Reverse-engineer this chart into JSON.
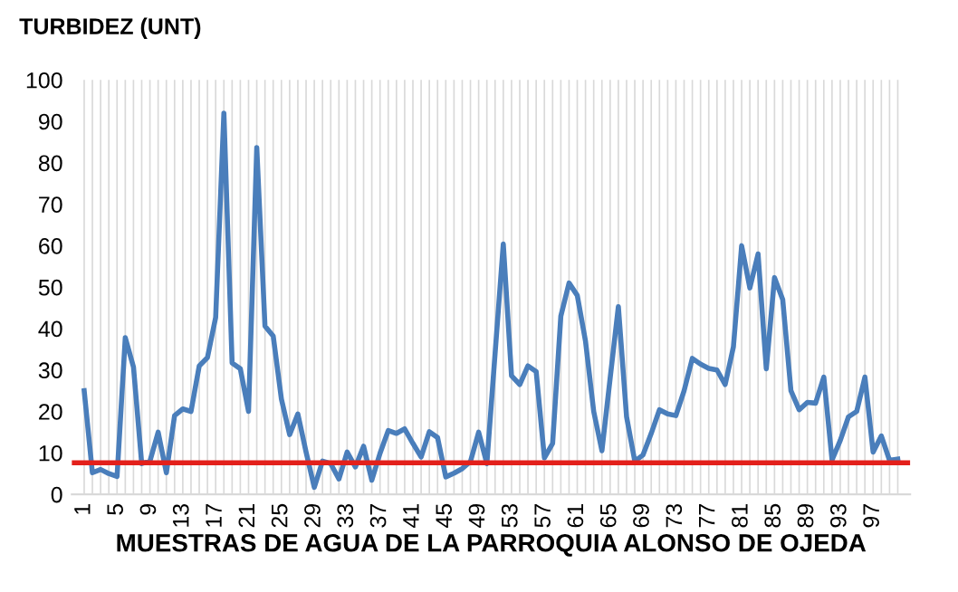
{
  "chart_data": {
    "type": "line",
    "ylabel": "TURBIDEZ (UNT)",
    "xlabel": "MUESTRAS DE AGUA DE LA PARROQUIA ALONSO DE OJEDA",
    "categories": [
      "1",
      null,
      null,
      null,
      "5",
      null,
      null,
      null,
      "9",
      null,
      null,
      null,
      "13",
      null,
      null,
      null,
      "17",
      null,
      null,
      null,
      "21",
      null,
      null,
      null,
      "25",
      null,
      null,
      null,
      "29",
      null,
      null,
      null,
      "33",
      null,
      null,
      null,
      "37",
      null,
      null,
      null,
      "41",
      null,
      null,
      null,
      "45",
      null,
      null,
      null,
      "49",
      null,
      null,
      null,
      "53",
      null,
      null,
      null,
      "57",
      null,
      null,
      null,
      "61",
      null,
      null,
      null,
      "65",
      null,
      null,
      null,
      "69",
      null,
      null,
      null,
      "73",
      null,
      null,
      null,
      "77",
      null,
      null,
      null,
      "81",
      null,
      null,
      null,
      "85",
      null,
      null,
      null,
      "89",
      null,
      null,
      null,
      "93",
      null,
      null,
      null,
      "97",
      null,
      null,
      null
    ],
    "series": [
      {
        "color": "#4a7ebb",
        "values": [
          25,
          5.2,
          6,
          5,
          4.3,
          37.8,
          30.7,
          7.4,
          8,
          15,
          5.2,
          19,
          20.6,
          20,
          31,
          33,
          42.7,
          92,
          31.7,
          30.3,
          20,
          83.7,
          40.6,
          38.2,
          23,
          14.4,
          19.4,
          10.2,
          1.7,
          8,
          7.4,
          3.7,
          10.2,
          6.6,
          11.6,
          3.4,
          9.9,
          15.4,
          14.7,
          15.8,
          12.3,
          9,
          15.1,
          13.7,
          4.2,
          5.1,
          6.2,
          7.9,
          15,
          7.4,
          34,
          60.4,
          28.6,
          26.5,
          31,
          29.6,
          8.8,
          12.3,
          43,
          51,
          48,
          37,
          20,
          10.5,
          28,
          45.3,
          18.7,
          8,
          9.5,
          14.7,
          20.4,
          19.4,
          19,
          25,
          32.8,
          31.4,
          30.4,
          30,
          26.5,
          35.6,
          60,
          49.8,
          58,
          30.3,
          52.3,
          47,
          25,
          20.4,
          22.2,
          22,
          28.3,
          8.3,
          13,
          18.7,
          20,
          28.3,
          10.2,
          14.1,
          8.2,
          8.5
        ]
      }
    ],
    "ylim": [
      0,
      100
    ],
    "yticks": [
      0,
      10,
      20,
      30,
      40,
      50,
      60,
      70,
      80,
      90,
      100
    ],
    "grid": "x",
    "ref_lines": [
      {
        "axis": "y",
        "value": 7.6,
        "color": "#e3201b"
      }
    ]
  }
}
